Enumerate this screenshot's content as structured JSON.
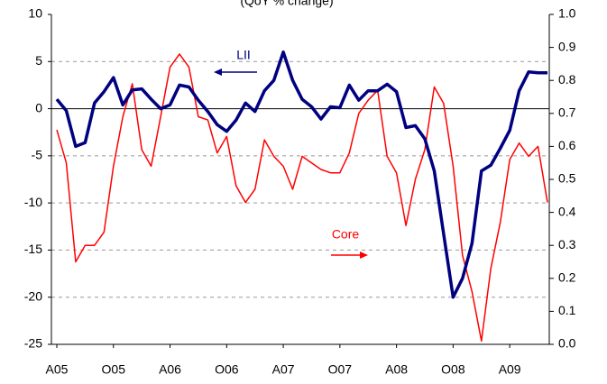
{
  "chart_data": {
    "type": "line",
    "title": "(QoY % change)",
    "categories": [
      "A05",
      null,
      null,
      null,
      null,
      null,
      "O05",
      null,
      null,
      null,
      null,
      null,
      "A06",
      null,
      null,
      null,
      null,
      null,
      "O06",
      null,
      null,
      null,
      null,
      null,
      "A07",
      null,
      null,
      null,
      null,
      null,
      "O07",
      null,
      null,
      null,
      null,
      null,
      "A08",
      null,
      null,
      null,
      null,
      null,
      "O08",
      null,
      null,
      null,
      null,
      null,
      "A09",
      null,
      null,
      null,
      null
    ],
    "series": [
      {
        "name": "LII",
        "color": "#000080",
        "axis": "y",
        "values": [
          1.0,
          -0.2,
          -4,
          -3.6,
          0.6,
          1.8,
          3.3,
          0.4,
          2,
          2.1,
          1.0,
          0,
          0.4,
          2.5,
          2.3,
          0.9,
          -0.3,
          -1.7,
          -2.4,
          -1.2,
          0.6,
          -0.3,
          1.9,
          3.0,
          6,
          3.0,
          1.0,
          0.2,
          -1.1,
          0.2,
          0.1,
          2.5,
          0.9,
          1.9,
          1.9,
          2.6,
          1.8,
          -2,
          -1.8,
          -3.2,
          -6.6,
          -13.3,
          -20,
          -18,
          -14.3,
          -6.6,
          -6,
          -4.2,
          -2.3,
          1.9,
          3.9,
          3.8,
          3.8
        ]
      },
      {
        "name": "Core",
        "color": "#ff0000",
        "axis": "y2",
        "values": [
          0.65,
          0.55,
          0.25,
          0.3,
          0.3,
          0.34,
          0.54,
          0.69,
          0.79,
          0.59,
          0.54,
          0.69,
          0.84,
          0.88,
          0.84,
          0.69,
          0.68,
          0.58,
          0.63,
          0.48,
          0.43,
          0.47,
          0.62,
          0.57,
          0.54,
          0.47,
          0.57,
          0.55,
          0.53,
          0.52,
          0.52,
          0.58,
          0.7,
          0.74,
          0.77,
          0.57,
          0.52,
          0.36,
          0.5,
          0.59,
          0.78,
          0.73,
          0.54,
          0.27,
          0.16,
          0.01,
          0.23,
          0.37,
          0.56,
          0.61,
          0.57,
          0.6,
          0.43
        ]
      }
    ],
    "ylim": [
      -25,
      10
    ],
    "yticks": [
      -25,
      -20,
      -15,
      -10,
      -5,
      0,
      5,
      10
    ],
    "y2lim": [
      0,
      1
    ],
    "y2ticks": [
      {
        "value": 0,
        "label": "0.0"
      },
      0.1,
      0.2,
      0.3,
      0.4,
      0.5,
      0.6,
      0.7,
      0.8,
      0.9,
      {
        "value": 1,
        "label": "1.0"
      }
    ],
    "grid": true
  }
}
